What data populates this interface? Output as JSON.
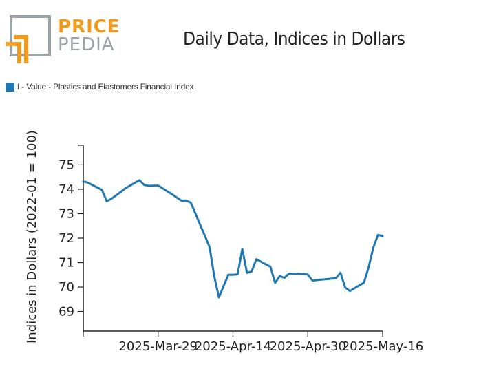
{
  "header": {
    "logo": {
      "price": "PRICE",
      "pedia": "PEDIA",
      "price_color": "#f29a1d",
      "pedia_color": "#9aa3a8"
    },
    "title": "Daily Data, Indices in Dollars"
  },
  "legend": {
    "label": "I - Value - Plastics and Elastomers Financial Index",
    "color": "#1f77b4"
  },
  "chart_data": {
    "type": "line",
    "title": "Daily Data, Indices in Dollars",
    "xlabel": "",
    "ylabel": "Indices in Dollars (2022-01 = 100)",
    "ylim": [
      68.2,
      75.8
    ],
    "yticks": [
      69,
      70,
      71,
      72,
      73,
      74,
      75
    ],
    "xlim": [
      "2025-03-13",
      "2025-05-16"
    ],
    "xticks": [
      "2025-Mar-29",
      "2025-Apr-14",
      "2025-Apr-30",
      "2025-May-16"
    ],
    "grid": false,
    "legend_position": "top-left",
    "series": [
      {
        "name": "I - Value - Plastics and Elastomers Financial Index",
        "color": "#1f77b4",
        "points": [
          [
            "2025-03-13",
            74.32
          ],
          [
            "2025-03-14",
            74.27
          ],
          [
            "2025-03-17",
            73.97
          ],
          [
            "2025-03-18",
            73.51
          ],
          [
            "2025-03-19",
            73.61
          ],
          [
            "2025-03-21",
            73.89
          ],
          [
            "2025-03-22",
            74.04
          ],
          [
            "2025-03-23",
            74.15
          ],
          [
            "2025-03-25",
            74.37
          ],
          [
            "2025-03-26",
            74.18
          ],
          [
            "2025-03-27",
            74.14
          ],
          [
            "2025-03-29",
            74.15
          ],
          [
            "2025-04-01",
            73.79
          ],
          [
            "2025-04-03",
            73.53
          ],
          [
            "2025-04-04",
            73.54
          ],
          [
            "2025-04-05",
            73.45
          ],
          [
            "2025-04-09",
            71.64
          ],
          [
            "2025-04-10",
            70.44
          ],
          [
            "2025-04-11",
            69.58
          ],
          [
            "2025-04-13",
            70.5
          ],
          [
            "2025-04-14",
            70.5
          ],
          [
            "2025-04-15",
            70.52
          ],
          [
            "2025-04-16",
            71.56
          ],
          [
            "2025-04-17",
            70.58
          ],
          [
            "2025-04-18",
            70.64
          ],
          [
            "2025-04-19",
            71.14
          ],
          [
            "2025-04-22",
            70.83
          ],
          [
            "2025-04-23",
            70.17
          ],
          [
            "2025-04-24",
            70.45
          ],
          [
            "2025-04-25",
            70.38
          ],
          [
            "2025-04-26",
            70.55
          ],
          [
            "2025-04-28",
            70.54
          ],
          [
            "2025-04-29",
            70.53
          ],
          [
            "2025-04-30",
            70.51
          ],
          [
            "2025-05-01",
            70.27
          ],
          [
            "2025-05-06",
            70.36
          ],
          [
            "2025-05-07",
            70.58
          ],
          [
            "2025-05-08",
            69.98
          ],
          [
            "2025-05-09",
            69.84
          ],
          [
            "2025-05-12",
            70.18
          ],
          [
            "2025-05-13",
            70.8
          ],
          [
            "2025-05-14",
            71.61
          ],
          [
            "2025-05-15",
            72.13
          ],
          [
            "2025-05-16",
            72.09
          ]
        ]
      }
    ]
  }
}
